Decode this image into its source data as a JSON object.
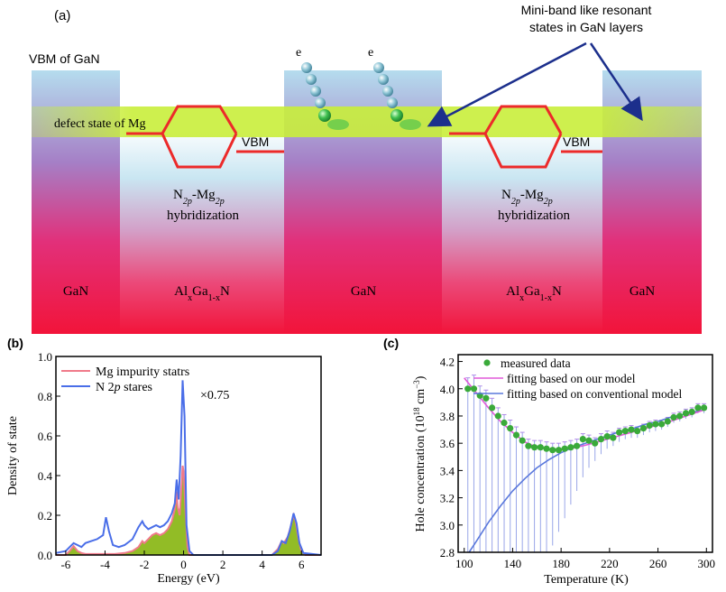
{
  "colors": {
    "band_top": "#b5dcee",
    "band_mid": "#a57fc6",
    "band_bottom": "#f2143a",
    "defect_band": "#c9ee3a",
    "hex_line": "#ec2a2a",
    "mg_series": "#f07a8a",
    "mg_fill": "#8cb81a",
    "n2p_series": "#4a6ee8",
    "measured_marker": "#3aaa3a",
    "our_model": "#e05ad8",
    "conventional_model": "#5a78dc",
    "arrow": "#1c2f8c",
    "electron": "#7ab8cc",
    "electron_green": "#3fbf4f"
  },
  "panel_a": {
    "label": "(a)",
    "vbm_gan": "VBM of GaN",
    "defect_state": "defect state of Mg",
    "vbm_left": "VBM",
    "vbm_right": "VBM",
    "hyb_left_1": "N",
    "hyb_left_1_sub": "2p",
    "hyb_left_2": "-Mg",
    "hyb_left_2_sub": "2p",
    "hyb_left_3": "hybridization",
    "hyb_right_1": "N",
    "hyb_right_1_sub": "2p",
    "hyb_right_2": "-Mg",
    "hyb_right_2_sub": "2p",
    "hyb_right_3": "hybridization",
    "electron_label_1": "e",
    "electron_label_2": "e",
    "resonant_1": "Mini-band like resonant",
    "resonant_2": "states in GaN layers",
    "layers": [
      {
        "t1": "GaN",
        "s1": "",
        "t2": "",
        "s2": "",
        "t3": ""
      },
      {
        "t1": "Al",
        "s1": "x",
        "t2": "Ga",
        "s2": "1-x",
        "t3": "N"
      },
      {
        "t1": "GaN",
        "s1": "",
        "t2": "",
        "s2": "",
        "t3": ""
      },
      {
        "t1": "Al",
        "s1": "x",
        "t2": "Ga",
        "s2": "1-x",
        "t3": "N"
      },
      {
        "t1": "GaN",
        "s1": "",
        "t2": "",
        "s2": "",
        "t3": ""
      }
    ]
  },
  "chart_data": [
    {
      "panel": "(b)",
      "type": "line",
      "xlabel": "Energy (eV)",
      "ylabel": "Density of state",
      "xlim": [
        -6.5,
        7
      ],
      "ylim": [
        0,
        1.0
      ],
      "xticks": [
        -6,
        -4,
        -2,
        0,
        2,
        4,
        6
      ],
      "yticks": [
        0.0,
        0.2,
        0.4,
        0.6,
        0.8,
        1.0
      ],
      "annotation": "×0.75",
      "legend_placement": "top-left",
      "series": [
        {
          "name": "Mg impurity statrs",
          "values": [
            [
              -6.5,
              0
            ],
            [
              -6.0,
              0
            ],
            [
              -5.8,
              0.02
            ],
            [
              -5.6,
              0.045
            ],
            [
              -5.4,
              0.02
            ],
            [
              -5.2,
              0.01
            ],
            [
              -5.0,
              0.005
            ],
            [
              -4.5,
              0.005
            ],
            [
              -4.0,
              0.005
            ],
            [
              -3.5,
              0.005
            ],
            [
              -3.0,
              0.01
            ],
            [
              -2.6,
              0.02
            ],
            [
              -2.3,
              0.04
            ],
            [
              -2.1,
              0.07
            ],
            [
              -2.0,
              0.06
            ],
            [
              -1.8,
              0.08
            ],
            [
              -1.6,
              0.1
            ],
            [
              -1.4,
              0.11
            ],
            [
              -1.2,
              0.1
            ],
            [
              -1.0,
              0.11
            ],
            [
              -0.8,
              0.13
            ],
            [
              -0.6,
              0.17
            ],
            [
              -0.45,
              0.23
            ],
            [
              -0.35,
              0.32
            ],
            [
              -0.3,
              0.24
            ],
            [
              -0.2,
              0.2
            ],
            [
              -0.1,
              0.36
            ],
            [
              -0.05,
              0.45
            ],
            [
              0.0,
              0.42
            ],
            [
              0.1,
              0.22
            ],
            [
              0.2,
              0.04
            ],
            [
              0.3,
              0
            ],
            [
              4.5,
              0
            ],
            [
              4.8,
              0.03
            ],
            [
              5.0,
              0.07
            ],
            [
              5.1,
              0.06
            ],
            [
              5.3,
              0.09
            ],
            [
              5.45,
              0.14
            ],
            [
              5.6,
              0.2
            ],
            [
              5.7,
              0.17
            ],
            [
              5.85,
              0.08
            ],
            [
              6.0,
              0.02
            ],
            [
              6.2,
              0
            ],
            [
              7.0,
              0
            ]
          ]
        },
        {
          "name": "N 2p stares",
          "name_main": "N 2",
          "name_italic": "p",
          "name_tail": " stares",
          "values": [
            [
              -6.5,
              0.01
            ],
            [
              -6.0,
              0.02
            ],
            [
              -5.6,
              0.06
            ],
            [
              -5.4,
              0.05
            ],
            [
              -5.2,
              0.04
            ],
            [
              -5.0,
              0.06
            ],
            [
              -4.7,
              0.07
            ],
            [
              -4.4,
              0.08
            ],
            [
              -4.1,
              0.1
            ],
            [
              -3.95,
              0.19
            ],
            [
              -3.8,
              0.12
            ],
            [
              -3.6,
              0.05
            ],
            [
              -3.3,
              0.04
            ],
            [
              -3.0,
              0.05
            ],
            [
              -2.6,
              0.08
            ],
            [
              -2.3,
              0.14
            ],
            [
              -2.1,
              0.17
            ],
            [
              -2.0,
              0.15
            ],
            [
              -1.8,
              0.13
            ],
            [
              -1.6,
              0.14
            ],
            [
              -1.4,
              0.15
            ],
            [
              -1.2,
              0.14
            ],
            [
              -1.0,
              0.15
            ],
            [
              -0.8,
              0.17
            ],
            [
              -0.6,
              0.21
            ],
            [
              -0.45,
              0.26
            ],
            [
              -0.35,
              0.38
            ],
            [
              -0.25,
              0.28
            ],
            [
              -0.15,
              0.5
            ],
            [
              -0.05,
              0.88
            ],
            [
              0.05,
              0.7
            ],
            [
              0.15,
              0.15
            ],
            [
              0.3,
              0.02
            ],
            [
              0.5,
              0
            ],
            [
              4.5,
              0
            ],
            [
              4.8,
              0.02
            ],
            [
              5.0,
              0.07
            ],
            [
              5.2,
              0.06
            ],
            [
              5.4,
              0.12
            ],
            [
              5.6,
              0.21
            ],
            [
              5.75,
              0.16
            ],
            [
              5.9,
              0.06
            ],
            [
              6.1,
              0.01
            ],
            [
              7.0,
              0
            ]
          ]
        }
      ]
    },
    {
      "panel": "(c)",
      "type": "scatter",
      "xlabel": "Temperature (K)",
      "ylabel_main": "Hole concentration (10",
      "ylabel_sup": "18",
      "ylabel_unit": " cm",
      "ylabel_unit_sup": "−3",
      "ylabel_close": ")",
      "xlim": [
        95,
        305
      ],
      "ylim": [
        2.8,
        4.25
      ],
      "xticks": [
        100,
        140,
        180,
        220,
        260,
        300
      ],
      "yticks": [
        2.8,
        3.0,
        3.2,
        3.4,
        3.6,
        3.8,
        4.0,
        4.2
      ],
      "legend_placement": "top-right",
      "series": [
        {
          "name": "measured data",
          "values": [
            [
              103,
              4.0
            ],
            [
              108,
              4.0
            ],
            [
              113,
              3.95
            ],
            [
              118,
              3.93
            ],
            [
              123,
              3.86
            ],
            [
              128,
              3.8
            ],
            [
              133,
              3.75
            ],
            [
              138,
              3.71
            ],
            [
              143,
              3.66
            ],
            [
              148,
              3.62
            ],
            [
              153,
              3.58
            ],
            [
              158,
              3.57
            ],
            [
              163,
              3.57
            ],
            [
              168,
              3.56
            ],
            [
              173,
              3.55
            ],
            [
              178,
              3.55
            ],
            [
              183,
              3.56
            ],
            [
              188,
              3.57
            ],
            [
              193,
              3.58
            ],
            [
              198,
              3.63
            ],
            [
              203,
              3.62
            ],
            [
              208,
              3.6
            ],
            [
              213,
              3.63
            ],
            [
              218,
              3.65
            ],
            [
              223,
              3.64
            ],
            [
              228,
              3.68
            ],
            [
              233,
              3.69
            ],
            [
              238,
              3.7
            ],
            [
              243,
              3.69
            ],
            [
              248,
              3.71
            ],
            [
              253,
              3.73
            ],
            [
              258,
              3.74
            ],
            [
              263,
              3.74
            ],
            [
              268,
              3.76
            ],
            [
              273,
              3.79
            ],
            [
              278,
              3.8
            ],
            [
              283,
              3.82
            ],
            [
              288,
              3.83
            ],
            [
              293,
              3.86
            ],
            [
              298,
              3.86
            ]
          ]
        },
        {
          "name": "fitting based on our model",
          "values": [
            [
              100,
              4.08
            ],
            [
              110,
              3.97
            ],
            [
              120,
              3.86
            ],
            [
              130,
              3.76
            ],
            [
              140,
              3.68
            ],
            [
              150,
              3.61
            ],
            [
              160,
              3.57
            ],
            [
              170,
              3.555
            ],
            [
              180,
              3.555
            ],
            [
              190,
              3.565
            ],
            [
              200,
              3.585
            ],
            [
              210,
              3.61
            ],
            [
              220,
              3.635
            ],
            [
              230,
              3.66
            ],
            [
              240,
              3.685
            ],
            [
              250,
              3.71
            ],
            [
              260,
              3.735
            ],
            [
              270,
              3.76
            ],
            [
              280,
              3.79
            ],
            [
              290,
              3.82
            ],
            [
              300,
              3.85
            ]
          ]
        },
        {
          "name": "fitting based on conventional model",
          "values": [
            [
              104,
              2.8
            ],
            [
              110,
              2.88
            ],
            [
              120,
              3.02
            ],
            [
              130,
              3.14
            ],
            [
              140,
              3.25
            ],
            [
              150,
              3.34
            ],
            [
              160,
              3.42
            ],
            [
              170,
              3.48
            ],
            [
              180,
              3.53
            ],
            [
              190,
              3.57
            ],
            [
              200,
              3.6
            ],
            [
              210,
              3.63
            ],
            [
              220,
              3.66
            ],
            [
              230,
              3.69
            ],
            [
              240,
              3.71
            ],
            [
              250,
              3.74
            ],
            [
              260,
              3.76
            ],
            [
              270,
              3.79
            ],
            [
              280,
              3.81
            ],
            [
              290,
              3.83
            ],
            [
              300,
              3.85
            ]
          ]
        }
      ],
      "error_bars": [
        [
          103,
          2.8,
          4.08
        ],
        [
          108,
          2.8,
          4.1
        ],
        [
          113,
          2.8,
          4.02
        ],
        [
          118,
          2.8,
          3.99
        ],
        [
          123,
          2.8,
          3.93
        ],
        [
          128,
          2.8,
          3.86
        ],
        [
          133,
          2.8,
          3.81
        ],
        [
          138,
          2.8,
          3.77
        ],
        [
          143,
          2.8,
          3.72
        ],
        [
          148,
          2.8,
          3.68
        ],
        [
          153,
          2.8,
          3.63
        ],
        [
          158,
          2.8,
          3.62
        ],
        [
          163,
          2.8,
          3.62
        ],
        [
          168,
          2.8,
          3.61
        ],
        [
          173,
          2.85,
          3.6
        ],
        [
          178,
          2.95,
          3.6
        ],
        [
          183,
          3.05,
          3.61
        ],
        [
          188,
          3.15,
          3.62
        ],
        [
          193,
          3.25,
          3.63
        ],
        [
          198,
          3.35,
          3.67
        ],
        [
          203,
          3.42,
          3.66
        ],
        [
          208,
          3.47,
          3.64
        ],
        [
          213,
          3.52,
          3.67
        ],
        [
          218,
          3.56,
          3.69
        ],
        [
          223,
          3.58,
          3.68
        ],
        [
          228,
          3.61,
          3.71
        ],
        [
          233,
          3.63,
          3.72
        ],
        [
          238,
          3.64,
          3.73
        ],
        [
          243,
          3.64,
          3.72
        ],
        [
          248,
          3.66,
          3.74
        ],
        [
          253,
          3.68,
          3.76
        ],
        [
          258,
          3.69,
          3.77
        ],
        [
          263,
          3.7,
          3.77
        ],
        [
          268,
          3.72,
          3.79
        ],
        [
          273,
          3.75,
          3.82
        ],
        [
          278,
          3.76,
          3.83
        ],
        [
          283,
          3.78,
          3.85
        ],
        [
          288,
          3.79,
          3.86
        ],
        [
          293,
          3.82,
          3.89
        ],
        [
          298,
          3.82,
          3.89
        ]
      ]
    }
  ]
}
